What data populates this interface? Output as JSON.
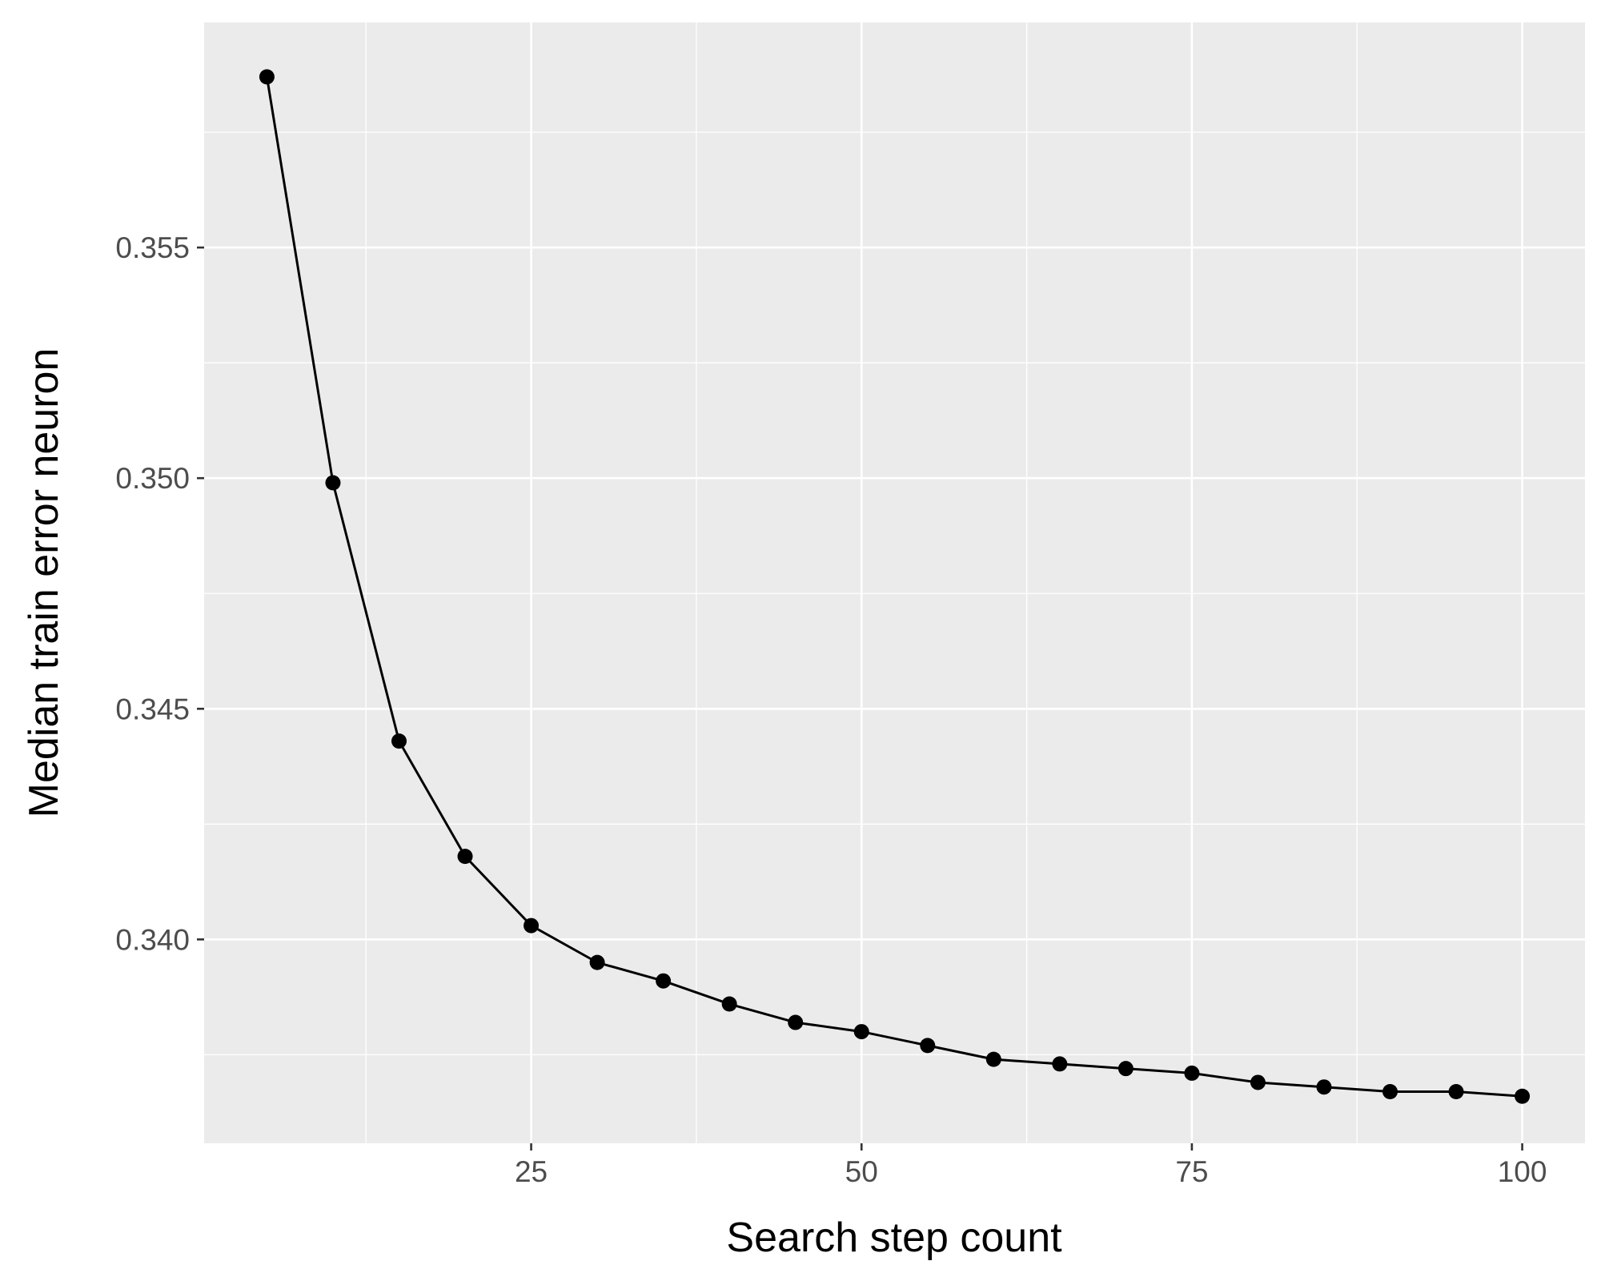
{
  "chart_data": {
    "type": "line",
    "title": "",
    "xlabel": "Search step count",
    "ylabel": "Median train error neuron",
    "x": [
      5,
      10,
      15,
      20,
      25,
      30,
      35,
      40,
      45,
      50,
      55,
      60,
      65,
      70,
      75,
      80,
      85,
      90,
      95,
      100
    ],
    "series": [
      {
        "values": [
          0.3587,
          0.3499,
          0.3443,
          0.3418,
          0.3403,
          0.3395,
          0.3391,
          0.3386,
          0.3382,
          0.338,
          0.3377,
          0.3374,
          0.3373,
          0.3372,
          0.3371,
          0.3369,
          0.3368,
          0.3367,
          0.3367,
          0.3366
        ],
        "color": "#000000",
        "markers": true
      }
    ],
    "xlim": [
      0.25,
      104.75
    ],
    "ylim": [
      0.33558,
      0.35988
    ],
    "xticks": [
      25,
      50,
      75,
      100
    ],
    "xtick_labels": [
      "25",
      "50",
      "75",
      "100"
    ],
    "xminor": [
      12.5,
      37.5,
      62.5,
      87.5
    ],
    "yticks": [
      0.34,
      0.345,
      0.35,
      0.355
    ],
    "ytick_labels": [
      "0.340",
      "0.345",
      "0.350",
      "0.355"
    ],
    "yminor": [
      0.3375,
      0.3425,
      0.3475,
      0.3525,
      0.3575
    ],
    "grid": true,
    "legend": "none",
    "panel_color": "#ebebeb"
  }
}
